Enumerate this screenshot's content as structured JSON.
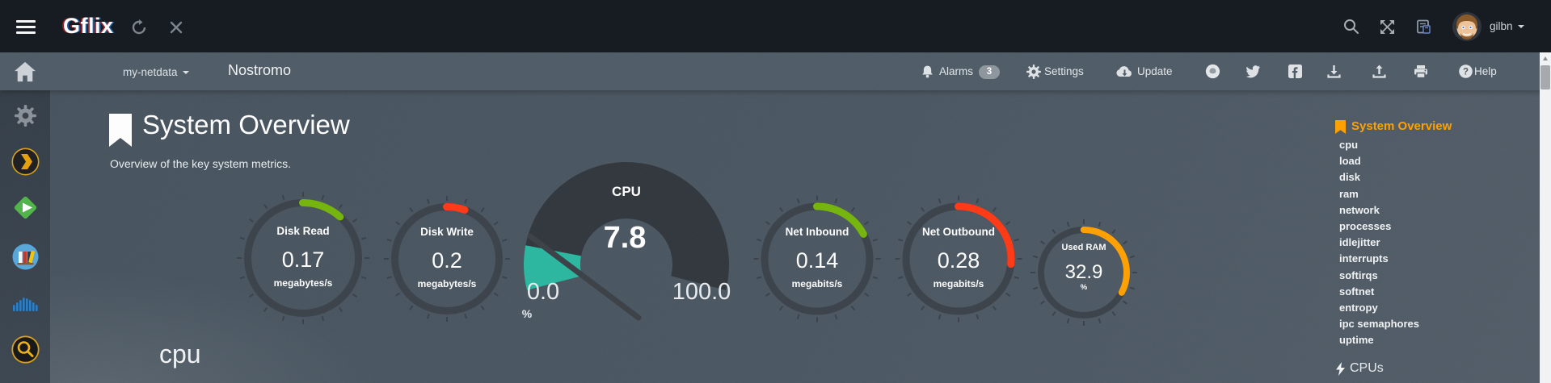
{
  "topbar": {
    "logo": "Gflix",
    "username": "gilbn",
    "icons": {
      "menu": "hamburger-icon",
      "refresh": "refresh-icon",
      "close": "close-icon",
      "search": "search-icon",
      "fullscreen": "expand-icon",
      "changelog": "book-icon"
    }
  },
  "navbar": {
    "host_dropdown": "my-netdata",
    "hostname": "Nostromo",
    "alarms_label": "Alarms",
    "alarms_count": "3",
    "settings_label": "Settings",
    "update_label": "Update",
    "help_label": "Help",
    "icons": [
      "bell-icon",
      "gear-icon",
      "cloud-download-icon",
      "github-icon",
      "twitter-icon",
      "facebook-icon",
      "import-icon",
      "export-icon",
      "print-icon",
      "help-icon"
    ]
  },
  "sidebar_icons": [
    "home-icon",
    "gear-icon",
    "plex-icon",
    "emby-icon",
    "library-icon",
    "audio-cloud-icon",
    "jackett-search-icon"
  ],
  "page": {
    "title": "System Overview",
    "subtitle": "Overview of the key system metrics.",
    "section_heading": "cpu"
  },
  "toc": {
    "active": "System Overview",
    "items": [
      "cpu",
      "load",
      "disk",
      "ram",
      "network",
      "processes",
      "idlejitter",
      "interrupts",
      "softirqs",
      "softnet",
      "entropy",
      "ipc semaphores",
      "uptime"
    ],
    "next_section": "CPUs",
    "accent_color": "#ffa000"
  },
  "chart_data": [
    {
      "type": "gauge",
      "style": "ring",
      "title": "Disk Read",
      "value": "0.17",
      "units": "megabytes/s",
      "arc_deg": 42,
      "color": "#74b50a"
    },
    {
      "type": "gauge",
      "style": "ring",
      "title": "Disk Write",
      "value": "0.2",
      "units": "megabytes/s",
      "arc_deg": 20,
      "color": "#ff3813"
    },
    {
      "type": "gauge",
      "style": "fan",
      "title": "CPU",
      "value": "7.8",
      "units": "%",
      "min_label": "0.0",
      "max_label": "100.0",
      "min": 0,
      "max": 100,
      "color": "#2ab7a0"
    },
    {
      "type": "gauge",
      "style": "ring",
      "title": "Net Inbound",
      "value": "0.14",
      "units": "megabits/s",
      "arc_deg": 62,
      "color": "#74b50a"
    },
    {
      "type": "gauge",
      "style": "ring",
      "title": "Net Outbound",
      "value": "0.28",
      "units": "megabits/s",
      "arc_deg": 96,
      "color": "#ff3813"
    },
    {
      "type": "gauge",
      "style": "ring",
      "title": "Used RAM",
      "value": "32.9",
      "units": "%",
      "arc_deg": 118,
      "color": "#ffa000"
    }
  ],
  "theme": {
    "ring_base": "#3a4149",
    "tick": "#39404a",
    "fan_base": "#30363c",
    "needle": "#3a4046"
  }
}
